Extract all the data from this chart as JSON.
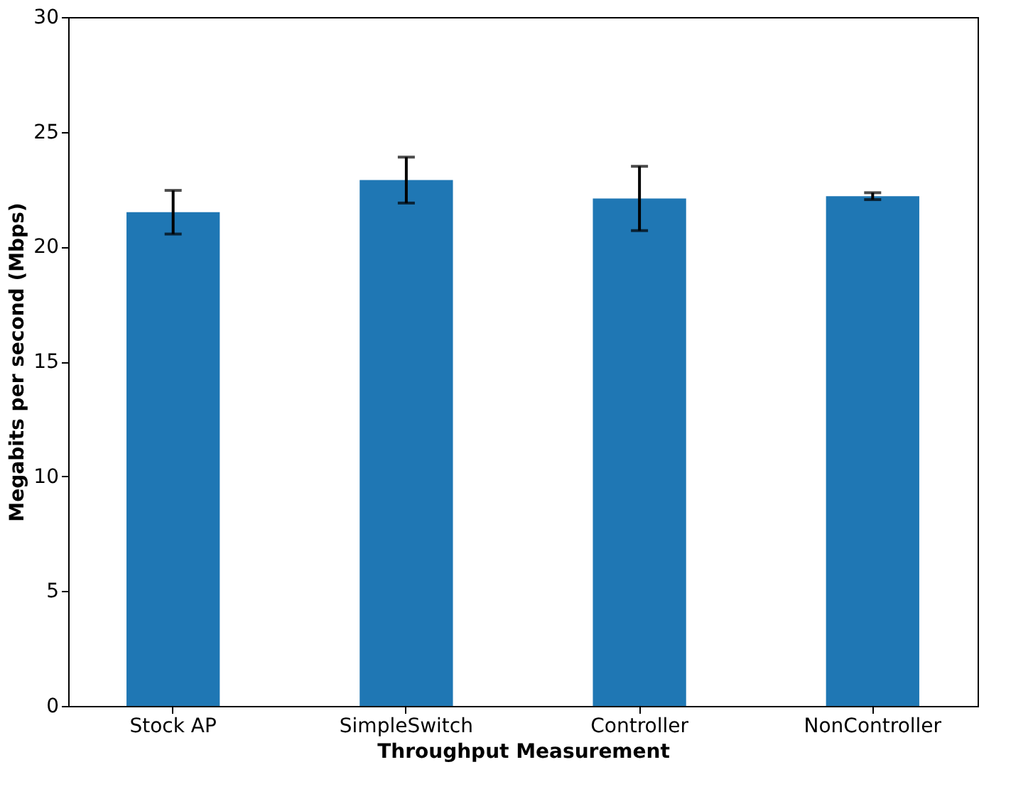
{
  "chart_data": {
    "type": "bar",
    "xlabel": "Throughput Measurement",
    "ylabel": "Megabits per second (Mbps)",
    "categories": [
      "Stock AP",
      "SimpleSwitch",
      "Controller",
      "NonController"
    ],
    "series": [
      {
        "color": "#1f77b4",
        "values": [
          21.5,
          22.9,
          22.1,
          22.2
        ],
        "errors": [
          0.95,
          1.0,
          1.4,
          0.15
        ]
      }
    ],
    "ylim": [
      0,
      30
    ],
    "yticks": [
      0,
      5,
      10,
      15,
      20,
      25,
      30
    ],
    "grid": false
  }
}
